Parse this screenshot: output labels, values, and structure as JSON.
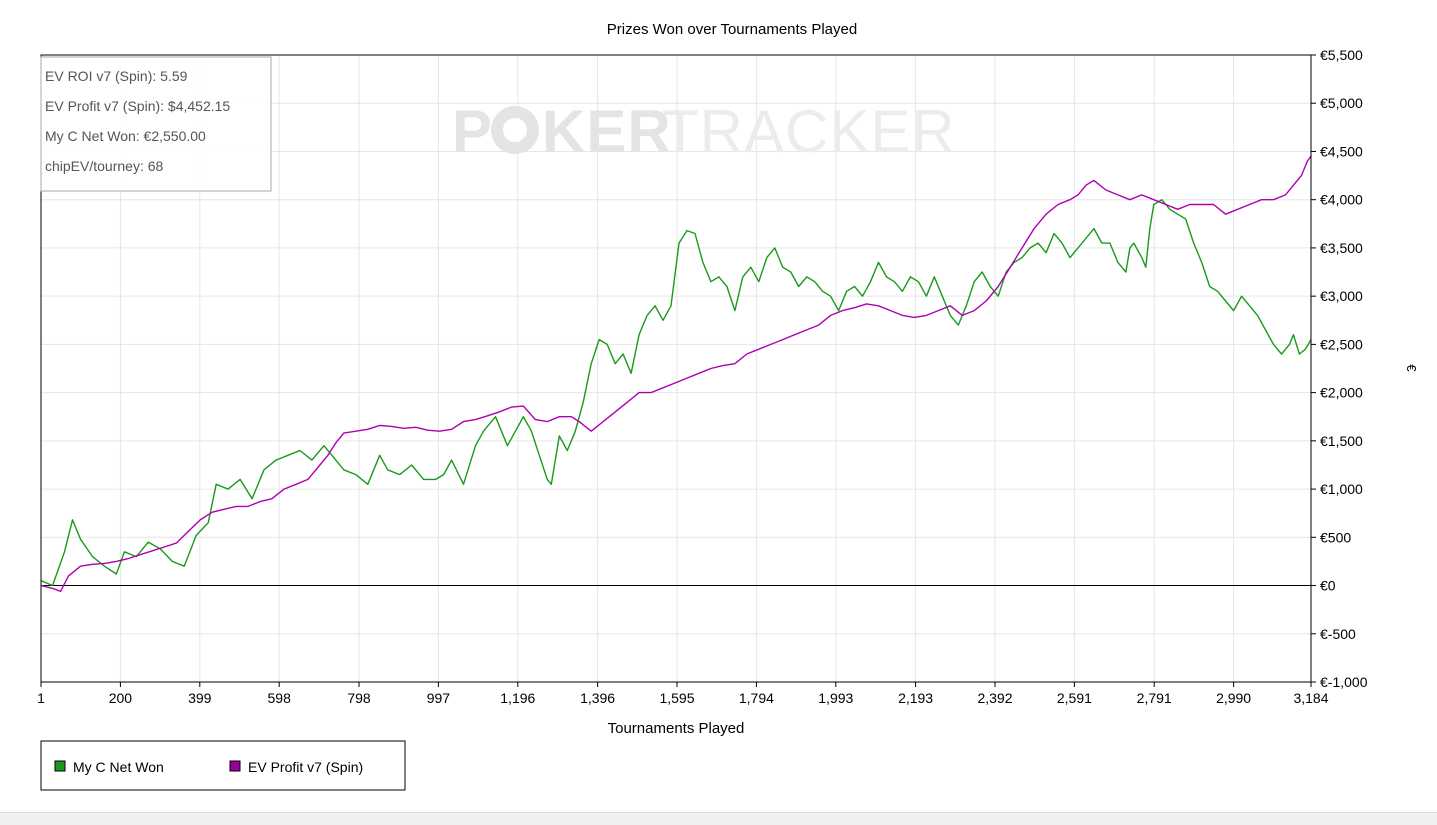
{
  "chart_data": {
    "type": "line",
    "title": "Prizes Won over Tournaments Played",
    "xlabel": "Tournaments Played",
    "ylabel": "€",
    "xlim": [
      1,
      3184
    ],
    "ylim": [
      -1000,
      5500
    ],
    "x_ticks": [
      {
        "value": 1,
        "label": "1"
      },
      {
        "value": 200,
        "label": "200"
      },
      {
        "value": 399,
        "label": "399"
      },
      {
        "value": 598,
        "label": "598"
      },
      {
        "value": 798,
        "label": "798"
      },
      {
        "value": 997,
        "label": "997"
      },
      {
        "value": 1196,
        "label": "1,196"
      },
      {
        "value": 1396,
        "label": "1,396"
      },
      {
        "value": 1595,
        "label": "1,595"
      },
      {
        "value": 1794,
        "label": "1,794"
      },
      {
        "value": 1993,
        "label": "1,993"
      },
      {
        "value": 2193,
        "label": "2,193"
      },
      {
        "value": 2392,
        "label": "2,392"
      },
      {
        "value": 2591,
        "label": "2,591"
      },
      {
        "value": 2791,
        "label": "2,791"
      },
      {
        "value": 2990,
        "label": "2,990"
      },
      {
        "value": 3184,
        "label": "3,184"
      }
    ],
    "y_ticks": [
      {
        "value": 5500,
        "label": "€5,500"
      },
      {
        "value": 5000,
        "label": "€5,000"
      },
      {
        "value": 4500,
        "label": "€4,500"
      },
      {
        "value": 4000,
        "label": "€4,000"
      },
      {
        "value": 3500,
        "label": "€3,500"
      },
      {
        "value": 3000,
        "label": "€3,000"
      },
      {
        "value": 2500,
        "label": "€2,500"
      },
      {
        "value": 2000,
        "label": "€2,000"
      },
      {
        "value": 1500,
        "label": "€1,500"
      },
      {
        "value": 1000,
        "label": "€1,000"
      },
      {
        "value": 500,
        "label": "€500"
      },
      {
        "value": 0,
        "label": "€0"
      },
      {
        "value": -500,
        "label": "€-500"
      },
      {
        "value": -1000,
        "label": "€-1,000"
      }
    ],
    "grid": true,
    "y_axis_side": "right",
    "legend_position": "bottom-left",
    "series": [
      {
        "name": "My C Net Won",
        "color": "#1a9a1a",
        "points": [
          [
            1,
            50
          ],
          [
            30,
            0
          ],
          [
            60,
            350
          ],
          [
            80,
            680
          ],
          [
            100,
            480
          ],
          [
            130,
            300
          ],
          [
            160,
            200
          ],
          [
            190,
            120
          ],
          [
            210,
            350
          ],
          [
            240,
            300
          ],
          [
            270,
            450
          ],
          [
            300,
            380
          ],
          [
            330,
            250
          ],
          [
            360,
            200
          ],
          [
            390,
            520
          ],
          [
            420,
            650
          ],
          [
            440,
            1050
          ],
          [
            470,
            1000
          ],
          [
            500,
            1100
          ],
          [
            530,
            900
          ],
          [
            560,
            1200
          ],
          [
            590,
            1300
          ],
          [
            620,
            1350
          ],
          [
            650,
            1400
          ],
          [
            680,
            1300
          ],
          [
            710,
            1450
          ],
          [
            730,
            1350
          ],
          [
            760,
            1200
          ],
          [
            790,
            1150
          ],
          [
            820,
            1050
          ],
          [
            850,
            1350
          ],
          [
            870,
            1200
          ],
          [
            900,
            1150
          ],
          [
            930,
            1250
          ],
          [
            960,
            1100
          ],
          [
            990,
            1100
          ],
          [
            1010,
            1150
          ],
          [
            1030,
            1300
          ],
          [
            1060,
            1050
          ],
          [
            1090,
            1450
          ],
          [
            1110,
            1600
          ],
          [
            1140,
            1750
          ],
          [
            1170,
            1450
          ],
          [
            1190,
            1600
          ],
          [
            1210,
            1750
          ],
          [
            1230,
            1600
          ],
          [
            1250,
            1350
          ],
          [
            1270,
            1100
          ],
          [
            1280,
            1050
          ],
          [
            1300,
            1550
          ],
          [
            1320,
            1400
          ],
          [
            1340,
            1600
          ],
          [
            1360,
            1900
          ],
          [
            1380,
            2300
          ],
          [
            1400,
            2550
          ],
          [
            1420,
            2500
          ],
          [
            1440,
            2300
          ],
          [
            1460,
            2400
          ],
          [
            1480,
            2200
          ],
          [
            1500,
            2600
          ],
          [
            1520,
            2800
          ],
          [
            1540,
            2900
          ],
          [
            1560,
            2750
          ],
          [
            1580,
            2900
          ],
          [
            1600,
            3550
          ],
          [
            1620,
            3680
          ],
          [
            1640,
            3650
          ],
          [
            1660,
            3350
          ],
          [
            1680,
            3150
          ],
          [
            1700,
            3200
          ],
          [
            1720,
            3100
          ],
          [
            1740,
            2850
          ],
          [
            1760,
            3200
          ],
          [
            1780,
            3300
          ],
          [
            1800,
            3150
          ],
          [
            1820,
            3400
          ],
          [
            1840,
            3500
          ],
          [
            1860,
            3300
          ],
          [
            1880,
            3250
          ],
          [
            1900,
            3100
          ],
          [
            1920,
            3200
          ],
          [
            1940,
            3150
          ],
          [
            1960,
            3050
          ],
          [
            1980,
            3000
          ],
          [
            2000,
            2850
          ],
          [
            2020,
            3050
          ],
          [
            2040,
            3100
          ],
          [
            2060,
            3000
          ],
          [
            2080,
            3150
          ],
          [
            2100,
            3350
          ],
          [
            2120,
            3200
          ],
          [
            2140,
            3150
          ],
          [
            2160,
            3050
          ],
          [
            2180,
            3200
          ],
          [
            2200,
            3150
          ],
          [
            2220,
            3000
          ],
          [
            2240,
            3200
          ],
          [
            2260,
            3000
          ],
          [
            2280,
            2800
          ],
          [
            2300,
            2700
          ],
          [
            2320,
            2900
          ],
          [
            2340,
            3150
          ],
          [
            2360,
            3250
          ],
          [
            2380,
            3100
          ],
          [
            2400,
            3000
          ],
          [
            2420,
            3250
          ],
          [
            2440,
            3350
          ],
          [
            2460,
            3400
          ],
          [
            2480,
            3500
          ],
          [
            2500,
            3550
          ],
          [
            2520,
            3450
          ],
          [
            2540,
            3650
          ],
          [
            2560,
            3550
          ],
          [
            2580,
            3400
          ],
          [
            2600,
            3500
          ],
          [
            2620,
            3600
          ],
          [
            2640,
            3700
          ],
          [
            2660,
            3550
          ],
          [
            2680,
            3550
          ],
          [
            2700,
            3350
          ],
          [
            2720,
            3250
          ],
          [
            2730,
            3500
          ],
          [
            2740,
            3550
          ],
          [
            2760,
            3400
          ],
          [
            2770,
            3300
          ],
          [
            2780,
            3700
          ],
          [
            2790,
            3950
          ],
          [
            2810,
            4000
          ],
          [
            2830,
            3900
          ],
          [
            2850,
            3850
          ],
          [
            2870,
            3800
          ],
          [
            2890,
            3550
          ],
          [
            2910,
            3350
          ],
          [
            2930,
            3100
          ],
          [
            2950,
            3050
          ],
          [
            2970,
            2950
          ],
          [
            2990,
            2850
          ],
          [
            3010,
            3000
          ],
          [
            3030,
            2900
          ],
          [
            3050,
            2800
          ],
          [
            3070,
            2650
          ],
          [
            3090,
            2500
          ],
          [
            3110,
            2400
          ],
          [
            3130,
            2500
          ],
          [
            3140,
            2600
          ],
          [
            3155,
            2400
          ],
          [
            3170,
            2450
          ],
          [
            3184,
            2550
          ]
        ]
      },
      {
        "name": "EV Profit v7 (Spin)",
        "color": "#b000b0",
        "points": [
          [
            1,
            0
          ],
          [
            30,
            -30
          ],
          [
            50,
            -60
          ],
          [
            70,
            100
          ],
          [
            100,
            200
          ],
          [
            130,
            220
          ],
          [
            160,
            230
          ],
          [
            190,
            250
          ],
          [
            220,
            280
          ],
          [
            250,
            320
          ],
          [
            280,
            360
          ],
          [
            310,
            400
          ],
          [
            340,
            440
          ],
          [
            370,
            560
          ],
          [
            400,
            680
          ],
          [
            430,
            760
          ],
          [
            460,
            790
          ],
          [
            490,
            820
          ],
          [
            520,
            820
          ],
          [
            550,
            870
          ],
          [
            580,
            900
          ],
          [
            610,
            1000
          ],
          [
            640,
            1050
          ],
          [
            670,
            1100
          ],
          [
            700,
            1250
          ],
          [
            720,
            1350
          ],
          [
            740,
            1480
          ],
          [
            760,
            1580
          ],
          [
            790,
            1600
          ],
          [
            820,
            1620
          ],
          [
            850,
            1660
          ],
          [
            880,
            1650
          ],
          [
            910,
            1630
          ],
          [
            940,
            1640
          ],
          [
            970,
            1610
          ],
          [
            1000,
            1600
          ],
          [
            1030,
            1620
          ],
          [
            1060,
            1700
          ],
          [
            1090,
            1720
          ],
          [
            1120,
            1760
          ],
          [
            1150,
            1800
          ],
          [
            1180,
            1850
          ],
          [
            1210,
            1860
          ],
          [
            1240,
            1720
          ],
          [
            1270,
            1700
          ],
          [
            1300,
            1750
          ],
          [
            1330,
            1750
          ],
          [
            1350,
            1700
          ],
          [
            1380,
            1600
          ],
          [
            1410,
            1700
          ],
          [
            1440,
            1800
          ],
          [
            1470,
            1900
          ],
          [
            1500,
            2000
          ],
          [
            1530,
            2000
          ],
          [
            1560,
            2050
          ],
          [
            1590,
            2100
          ],
          [
            1620,
            2150
          ],
          [
            1650,
            2200
          ],
          [
            1680,
            2250
          ],
          [
            1710,
            2280
          ],
          [
            1740,
            2300
          ],
          [
            1770,
            2400
          ],
          [
            1800,
            2450
          ],
          [
            1830,
            2500
          ],
          [
            1860,
            2550
          ],
          [
            1890,
            2600
          ],
          [
            1920,
            2650
          ],
          [
            1950,
            2700
          ],
          [
            1980,
            2800
          ],
          [
            2010,
            2850
          ],
          [
            2040,
            2880
          ],
          [
            2070,
            2920
          ],
          [
            2100,
            2900
          ],
          [
            2130,
            2850
          ],
          [
            2160,
            2800
          ],
          [
            2190,
            2780
          ],
          [
            2220,
            2800
          ],
          [
            2250,
            2850
          ],
          [
            2280,
            2900
          ],
          [
            2310,
            2800
          ],
          [
            2340,
            2850
          ],
          [
            2370,
            2950
          ],
          [
            2400,
            3100
          ],
          [
            2430,
            3300
          ],
          [
            2460,
            3500
          ],
          [
            2490,
            3700
          ],
          [
            2520,
            3850
          ],
          [
            2550,
            3950
          ],
          [
            2580,
            4000
          ],
          [
            2600,
            4050
          ],
          [
            2620,
            4150
          ],
          [
            2640,
            4200
          ],
          [
            2670,
            4100
          ],
          [
            2700,
            4050
          ],
          [
            2730,
            4000
          ],
          [
            2760,
            4050
          ],
          [
            2790,
            4000
          ],
          [
            2820,
            3950
          ],
          [
            2850,
            3900
          ],
          [
            2880,
            3950
          ],
          [
            2910,
            3950
          ],
          [
            2940,
            3950
          ],
          [
            2970,
            3850
          ],
          [
            3000,
            3900
          ],
          [
            3030,
            3950
          ],
          [
            3060,
            4000
          ],
          [
            3090,
            4000
          ],
          [
            3120,
            4050
          ],
          [
            3140,
            4150
          ],
          [
            3160,
            4250
          ],
          [
            3175,
            4400
          ],
          [
            3184,
            4452
          ]
        ]
      }
    ],
    "info_box": [
      "EV ROI v7 (Spin): 5.59",
      "EV Profit v7 (Spin): $4,452.15",
      "My C Net Won: €2,550.00",
      "chipEV/tourney: 68"
    ],
    "watermark": "POKERTRACKER"
  }
}
